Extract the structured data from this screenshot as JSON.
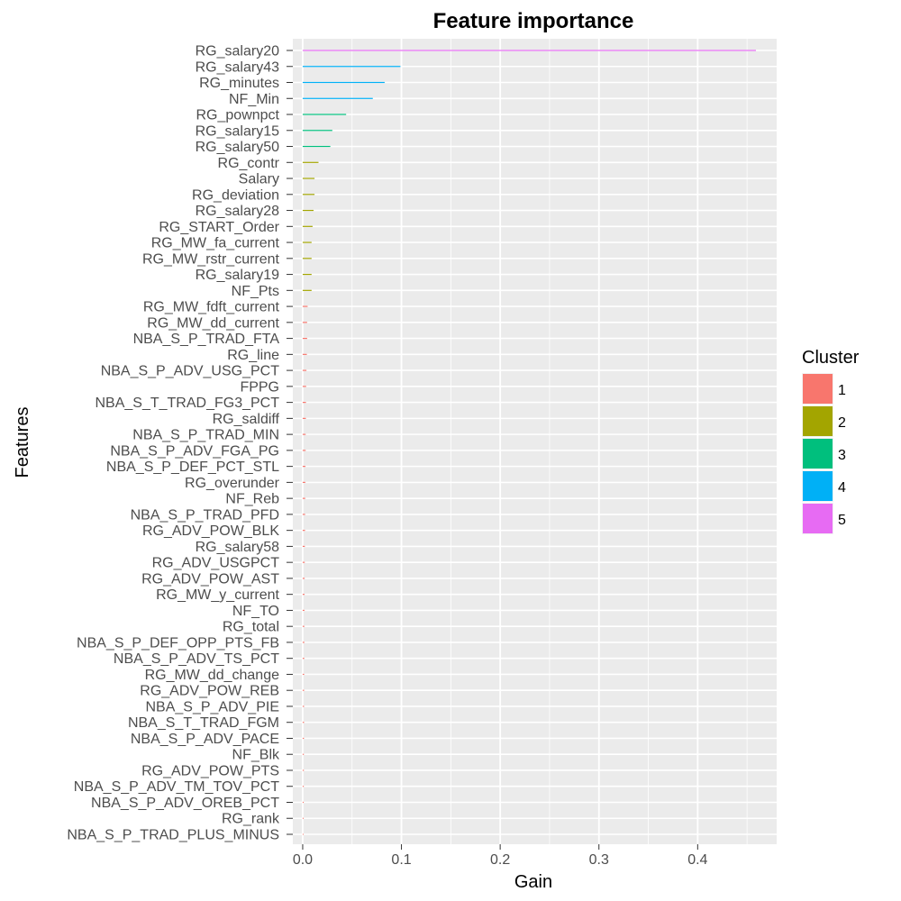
{
  "chart_data": {
    "type": "bar",
    "orientation": "horizontal",
    "title": "Feature importance",
    "xlabel": "Gain",
    "ylabel": "Features",
    "xlim": [
      -0.01,
      0.48
    ],
    "xticks": [
      "0.0",
      "0.1",
      "0.2",
      "0.3",
      "0.4"
    ],
    "grid": true,
    "legend": {
      "title": "Cluster",
      "position": "right",
      "entries": [
        {
          "label": "1",
          "color": "#F8766D"
        },
        {
          "label": "2",
          "color": "#A3A500"
        },
        {
          "label": "3",
          "color": "#00BF7D"
        },
        {
          "label": "4",
          "color": "#00B0F6"
        },
        {
          "label": "5",
          "color": "#E76BF3"
        }
      ]
    },
    "categories": [
      "RG_salary20",
      "RG_salary43",
      "RG_minutes",
      "NF_Min",
      "RG_pownpct",
      "RG_salary15",
      "RG_salary50",
      "RG_contr",
      "Salary",
      "RG_deviation",
      "RG_salary28",
      "RG_START_Order",
      "RG_MW_fa_current",
      "RG_MW_rstr_current",
      "RG_salary19",
      "NF_Pts",
      "RG_MW_fdft_current",
      "RG_MW_dd_current",
      "NBA_S_P_TRAD_FTA",
      "RG_line",
      "NBA_S_P_ADV_USG_PCT",
      "FPPG",
      "NBA_S_T_TRAD_FG3_PCT",
      "RG_saldiff",
      "NBA_S_P_TRAD_MIN",
      "NBA_S_P_ADV_FGA_PG",
      "NBA_S_P_DEF_PCT_STL",
      "RG_overunder",
      "NF_Reb",
      "NBA_S_P_TRAD_PFD",
      "RG_ADV_POW_BLK",
      "RG_salary58",
      "RG_ADV_USGPCT",
      "RG_ADV_POW_AST",
      "RG_MW_y_current",
      "NF_TO",
      "RG_total",
      "NBA_S_P_DEF_OPP_PTS_FB",
      "NBA_S_P_ADV_TS_PCT",
      "RG_MW_dd_change",
      "RG_ADV_POW_REB",
      "NBA_S_P_ADV_PIE",
      "NBA_S_T_TRAD_FGM",
      "NBA_S_P_ADV_PACE",
      "NF_Blk",
      "RG_ADV_POW_PTS",
      "NBA_S_P_ADV_TM_TOV_PCT",
      "NBA_S_P_ADV_OREB_PCT",
      "RG_rank",
      "NBA_S_P_TRAD_PLUS_MINUS"
    ],
    "values": [
      0.459,
      0.099,
      0.083,
      0.071,
      0.044,
      0.03,
      0.028,
      0.016,
      0.012,
      0.012,
      0.011,
      0.01,
      0.009,
      0.009,
      0.009,
      0.009,
      0.005,
      0.0045,
      0.0045,
      0.0042,
      0.0038,
      0.0035,
      0.0033,
      0.0032,
      0.003,
      0.003,
      0.0028,
      0.0027,
      0.0026,
      0.0025,
      0.0024,
      0.0022,
      0.0021,
      0.002,
      0.0019,
      0.0018,
      0.0017,
      0.0017,
      0.0016,
      0.0015,
      0.0015,
      0.0014,
      0.0014,
      0.0013,
      0.0012,
      0.0012,
      0.0011,
      0.001,
      0.0009,
      0.0008
    ],
    "clusters": [
      5,
      4,
      4,
      4,
      3,
      3,
      3,
      2,
      2,
      2,
      2,
      2,
      2,
      2,
      2,
      2,
      1,
      1,
      1,
      1,
      1,
      1,
      1,
      1,
      1,
      1,
      1,
      1,
      1,
      1,
      1,
      1,
      1,
      1,
      1,
      1,
      1,
      1,
      1,
      1,
      1,
      1,
      1,
      1,
      1,
      1,
      1,
      1,
      1,
      1
    ]
  }
}
